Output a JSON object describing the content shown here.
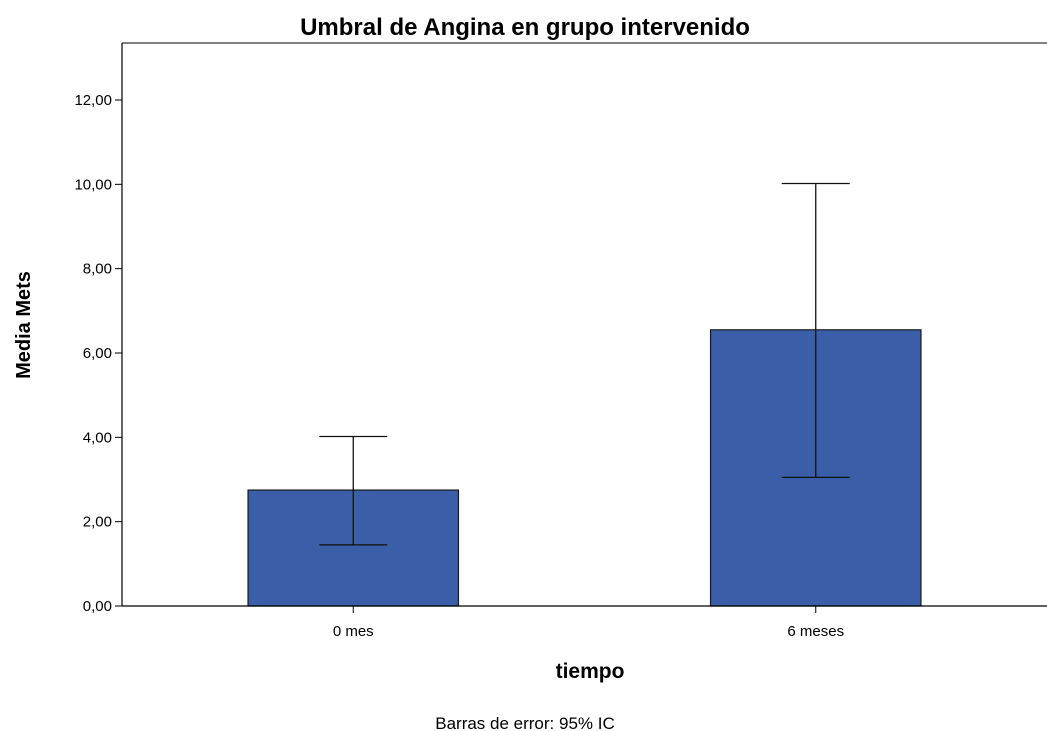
{
  "chart_data": {
    "type": "bar",
    "title": "Umbral de Angina en grupo intervenido",
    "xlabel": "tiempo",
    "ylabel": "Media Mets",
    "categories": [
      "0 mes",
      "6 meses"
    ],
    "values": [
      2.75,
      6.55
    ],
    "error_bars": {
      "type": "95% CI",
      "lower": [
        1.45,
        3.05
      ],
      "upper": [
        4.02,
        10.02
      ]
    },
    "ylim": [
      0,
      13.2
    ],
    "yticks": [
      0,
      2,
      4,
      6,
      8,
      10,
      12
    ],
    "ytick_labels": [
      "0,00",
      "2,00",
      "4,00",
      "6,00",
      "8,00",
      "10,00",
      "12,00"
    ],
    "grid": false,
    "legend": "none",
    "footnote": "Barras de error: 95% IC",
    "colors": {
      "bar": "#3a5ea8",
      "bar_edge": "#1a1a1a",
      "axis": "#000000"
    }
  }
}
